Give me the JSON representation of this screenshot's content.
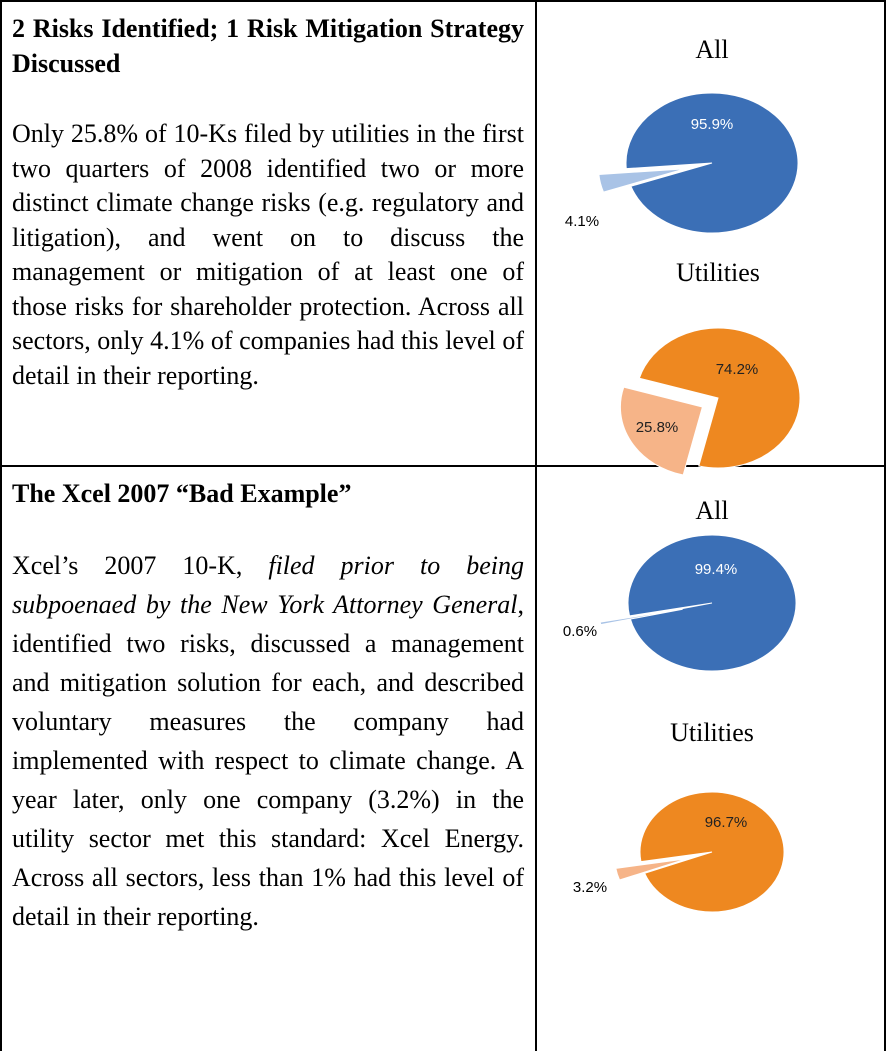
{
  "table": {
    "rows": [
      {
        "heading": "2 Risks Identified; 1 Risk Mitigation Strategy Discussed",
        "body": [
          "Only 25.8% of 10-Ks filed by utilities in the first two quarters of 2008 identified two or more distinct climate change risks (e.g. regulatory and litigation), and went on to discuss the management or mitigation of at least one of those risks for shareholder protection.  Across all sectors, only 4.1% of companies had this level of detail in their reporting."
        ]
      },
      {
        "heading": "The Xcel 2007 “Bad Example”",
        "body": [
          "Xcel’s 2007 10-K, ",
          "filed prior to being subpoenaed by the New York Attorney General",
          ", identified two risks, discussed a management and mitigation solution for each, and described voluntary measures the company had implemented with respect to climate change.  A year later, only one company (3.2%) in the utility sector met this standard: Xcel Energy.  Across all sectors, less than 1% had this level of detail in their reporting."
        ]
      }
    ]
  },
  "chart_data": [
    {
      "type": "pie",
      "title": "All",
      "values": [
        95.9,
        4.1
      ],
      "value_labels": [
        "95.9%",
        "4.1%"
      ],
      "colors": [
        "#3b6fb6",
        "#a9c3e6"
      ]
    },
    {
      "type": "pie",
      "title": "Utilities",
      "values": [
        74.2,
        25.8
      ],
      "value_labels": [
        "74.2%",
        "25.8%"
      ],
      "colors": [
        "#ee8820",
        "#f6b488"
      ]
    },
    {
      "type": "pie",
      "title": "All",
      "values": [
        99.4,
        0.6
      ],
      "value_labels": [
        "99.4%",
        "0.6%"
      ],
      "colors": [
        "#3b6fb6",
        "#a9c3e6"
      ]
    },
    {
      "type": "pie",
      "title": "Utilities",
      "values": [
        96.7,
        3.2
      ],
      "value_labels": [
        "96.7%",
        "3.2%"
      ],
      "colors": [
        "#ee8820",
        "#f6b488"
      ]
    }
  ]
}
